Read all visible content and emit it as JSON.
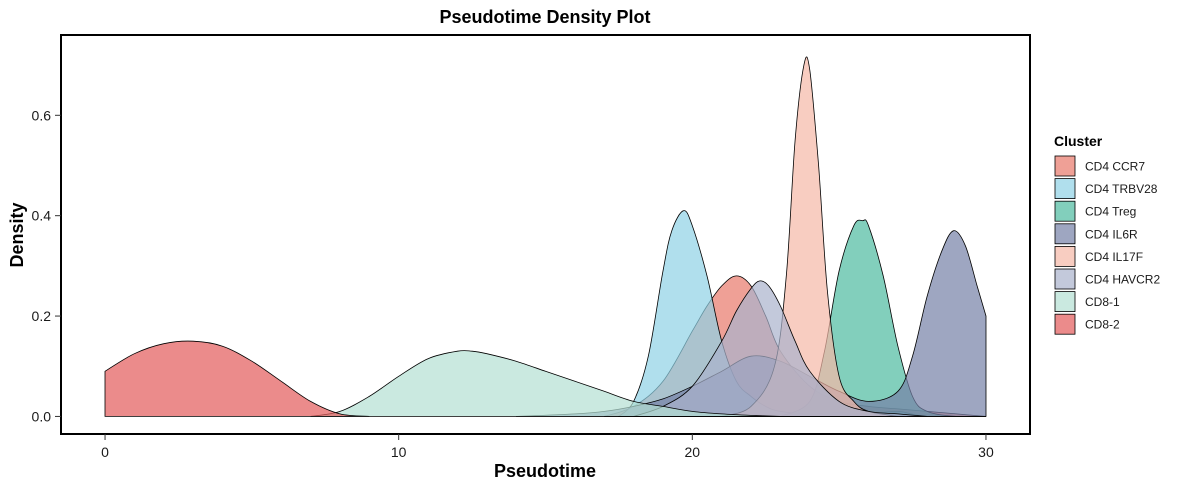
{
  "chart_data": {
    "type": "area",
    "title": "Pseudotime Density Plot",
    "xlabel": "Pseudotime",
    "ylabel": "Density",
    "xlim": [
      -1.5,
      31.5
    ],
    "ylim": [
      -0.035,
      0.76
    ],
    "xticks": [
      "0",
      "10",
      "20",
      "30"
    ],
    "xtick_values": [
      0,
      10,
      20,
      30
    ],
    "yticks": [
      "0.0",
      "0.2",
      "0.4",
      "0.6"
    ],
    "ytick_values": [
      0,
      0.2,
      0.4,
      0.6
    ],
    "grid": false,
    "legend_title": "Cluster",
    "legend_position": "right",
    "fill_opacity": 0.7,
    "series": [
      {
        "name": "CD4 CCR7",
        "color": "#e8786a",
        "x": [
          17,
          18,
          19,
          20,
          20.5,
          21,
          21.5,
          22,
          22.5,
          23,
          24,
          25,
          26,
          27,
          28,
          29,
          30
        ],
        "y": [
          0,
          0.02,
          0.07,
          0.17,
          0.22,
          0.26,
          0.28,
          0.26,
          0.2,
          0.13,
          0.06,
          0.03,
          0.02,
          0.015,
          0.01,
          0.005,
          0
        ]
      },
      {
        "name": "CD4 TRBV28",
        "color": "#8ed2e5",
        "x": [
          17.5,
          18,
          18.5,
          19,
          19.3,
          19.7,
          20,
          20.5,
          21,
          21.5,
          22,
          22.5,
          23,
          24,
          25,
          26,
          27,
          28,
          30
        ],
        "y": [
          0,
          0.03,
          0.12,
          0.29,
          0.37,
          0.41,
          0.38,
          0.28,
          0.15,
          0.07,
          0.04,
          0.02,
          0.01,
          0.005,
          0.008,
          0.005,
          0.01,
          0,
          0
        ]
      },
      {
        "name": "CD4 Treg",
        "color": "#4dbba0",
        "x": [
          23,
          24,
          24.5,
          25,
          25.5,
          25.8,
          26,
          26.5,
          27,
          27.5,
          28,
          29,
          30
        ],
        "y": [
          0,
          0.03,
          0.13,
          0.29,
          0.38,
          0.39,
          0.38,
          0.28,
          0.14,
          0.04,
          0.01,
          0,
          0
        ]
      },
      {
        "name": "CD4 IL6R",
        "color": "#7580a6",
        "x": [
          14,
          16,
          17,
          18,
          19,
          20,
          21,
          22,
          23,
          24,
          25,
          26,
          27,
          27.5,
          28,
          28.5,
          28.9,
          29.3,
          29.7,
          30
        ],
        "y": [
          0,
          0.005,
          0.01,
          0.02,
          0.035,
          0.06,
          0.09,
          0.12,
          0.11,
          0.08,
          0.05,
          0.03,
          0.05,
          0.12,
          0.24,
          0.33,
          0.37,
          0.34,
          0.26,
          0.2
        ]
      },
      {
        "name": "CD4 IL17F",
        "color": "#f5b8a6",
        "x": [
          21,
          22,
          22.8,
          23.2,
          23.5,
          23.8,
          24,
          24.3,
          24.6,
          25,
          25.5,
          26,
          27
        ],
        "y": [
          0,
          0.02,
          0.1,
          0.28,
          0.55,
          0.7,
          0.69,
          0.5,
          0.25,
          0.08,
          0.03,
          0.01,
          0
        ]
      },
      {
        "name": "CD4 HAVCR2",
        "color": "#aab2cc",
        "x": [
          18,
          19,
          20,
          21,
          21.5,
          22,
          22.3,
          22.6,
          23,
          23.5,
          24,
          25,
          26,
          27,
          28
        ],
        "y": [
          0,
          0.02,
          0.06,
          0.15,
          0.21,
          0.255,
          0.27,
          0.26,
          0.22,
          0.15,
          0.09,
          0.03,
          0.01,
          0.005,
          0
        ]
      },
      {
        "name": "CD8-1",
        "color": "#b3dfd3",
        "x": [
          7,
          8,
          9,
          10,
          11,
          12,
          12.5,
          13,
          14,
          15,
          16,
          17,
          18,
          19,
          20,
          21,
          22,
          23
        ],
        "y": [
          0,
          0.01,
          0.04,
          0.08,
          0.115,
          0.13,
          0.13,
          0.125,
          0.11,
          0.09,
          0.07,
          0.05,
          0.03,
          0.02,
          0.01,
          0.005,
          0.002,
          0
        ]
      },
      {
        "name": "CD8-2",
        "color": "#e35a5a",
        "x": [
          0,
          1,
          2,
          3,
          4,
          5,
          6,
          7,
          8,
          9
        ],
        "y": [
          0.09,
          0.125,
          0.145,
          0.15,
          0.14,
          0.11,
          0.07,
          0.03,
          0.005,
          0
        ]
      }
    ]
  }
}
